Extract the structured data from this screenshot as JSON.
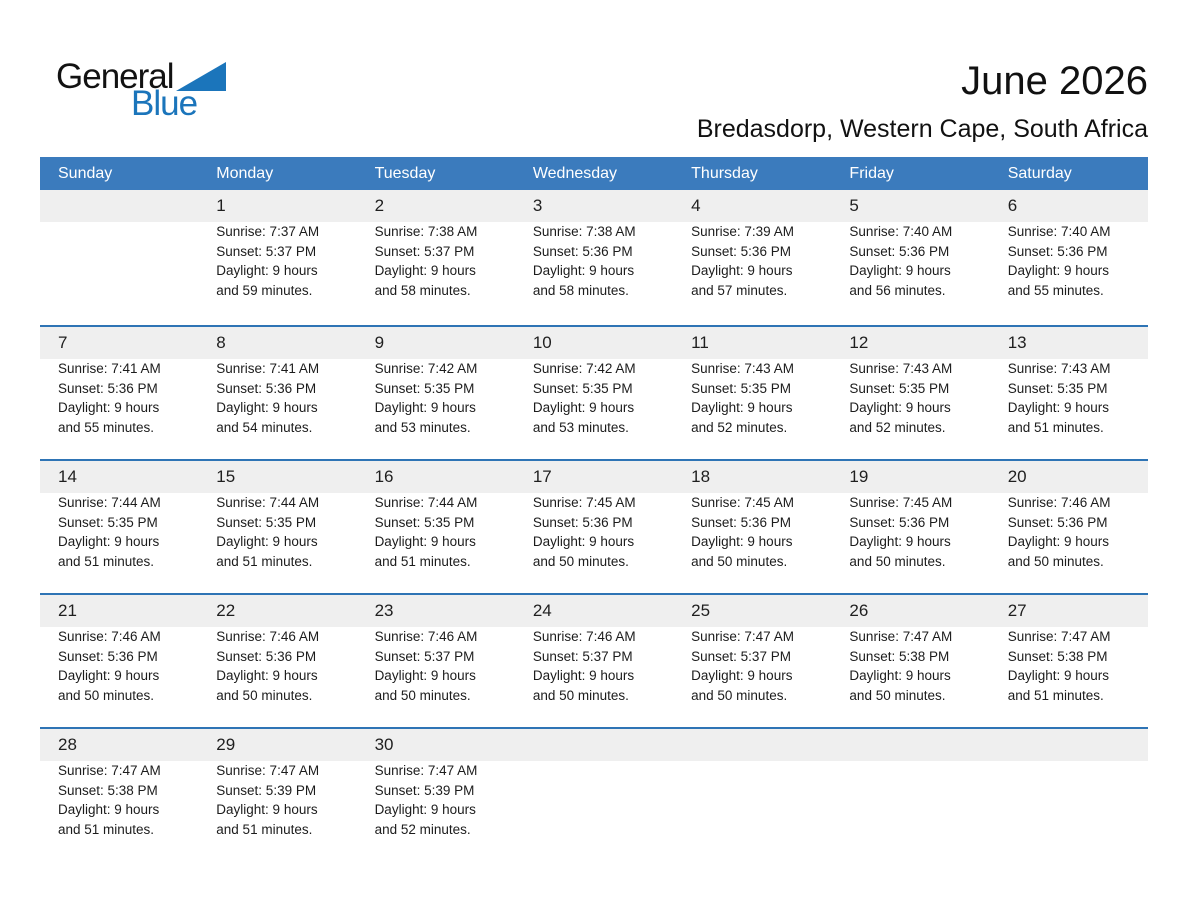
{
  "logo": {
    "word1": "General",
    "word2": "Blue"
  },
  "header": {
    "title": "June 2026",
    "subtitle": "Bredasdorp, Western Cape, South Africa"
  },
  "colors": {
    "header_bar_blue": "#3b7bbd",
    "week_divider_blue": "#2e74b5",
    "logo_blue": "#1b75bb",
    "day_number_band_gray": "#efefef"
  },
  "weekdays": [
    "Sunday",
    "Monday",
    "Tuesday",
    "Wednesday",
    "Thursday",
    "Friday",
    "Saturday"
  ],
  "weeks": [
    [
      {
        "day": "",
        "lines": []
      },
      {
        "day": "1",
        "lines": [
          "Sunrise: 7:37 AM",
          "Sunset: 5:37 PM",
          "Daylight: 9 hours",
          "and 59 minutes."
        ]
      },
      {
        "day": "2",
        "lines": [
          "Sunrise: 7:38 AM",
          "Sunset: 5:37 PM",
          "Daylight: 9 hours",
          "and 58 minutes."
        ]
      },
      {
        "day": "3",
        "lines": [
          "Sunrise: 7:38 AM",
          "Sunset: 5:36 PM",
          "Daylight: 9 hours",
          "and 58 minutes."
        ]
      },
      {
        "day": "4",
        "lines": [
          "Sunrise: 7:39 AM",
          "Sunset: 5:36 PM",
          "Daylight: 9 hours",
          "and 57 minutes."
        ]
      },
      {
        "day": "5",
        "lines": [
          "Sunrise: 7:40 AM",
          "Sunset: 5:36 PM",
          "Daylight: 9 hours",
          "and 56 minutes."
        ]
      },
      {
        "day": "6",
        "lines": [
          "Sunrise: 7:40 AM",
          "Sunset: 5:36 PM",
          "Daylight: 9 hours",
          "and 55 minutes."
        ]
      }
    ],
    [
      {
        "day": "7",
        "lines": [
          "Sunrise: 7:41 AM",
          "Sunset: 5:36 PM",
          "Daylight: 9 hours",
          "and 55 minutes."
        ]
      },
      {
        "day": "8",
        "lines": [
          "Sunrise: 7:41 AM",
          "Sunset: 5:36 PM",
          "Daylight: 9 hours",
          "and 54 minutes."
        ]
      },
      {
        "day": "9",
        "lines": [
          "Sunrise: 7:42 AM",
          "Sunset: 5:35 PM",
          "Daylight: 9 hours",
          "and 53 minutes."
        ]
      },
      {
        "day": "10",
        "lines": [
          "Sunrise: 7:42 AM",
          "Sunset: 5:35 PM",
          "Daylight: 9 hours",
          "and 53 minutes."
        ]
      },
      {
        "day": "11",
        "lines": [
          "Sunrise: 7:43 AM",
          "Sunset: 5:35 PM",
          "Daylight: 9 hours",
          "and 52 minutes."
        ]
      },
      {
        "day": "12",
        "lines": [
          "Sunrise: 7:43 AM",
          "Sunset: 5:35 PM",
          "Daylight: 9 hours",
          "and 52 minutes."
        ]
      },
      {
        "day": "13",
        "lines": [
          "Sunrise: 7:43 AM",
          "Sunset: 5:35 PM",
          "Daylight: 9 hours",
          "and 51 minutes."
        ]
      }
    ],
    [
      {
        "day": "14",
        "lines": [
          "Sunrise: 7:44 AM",
          "Sunset: 5:35 PM",
          "Daylight: 9 hours",
          "and 51 minutes."
        ]
      },
      {
        "day": "15",
        "lines": [
          "Sunrise: 7:44 AM",
          "Sunset: 5:35 PM",
          "Daylight: 9 hours",
          "and 51 minutes."
        ]
      },
      {
        "day": "16",
        "lines": [
          "Sunrise: 7:44 AM",
          "Sunset: 5:35 PM",
          "Daylight: 9 hours",
          "and 51 minutes."
        ]
      },
      {
        "day": "17",
        "lines": [
          "Sunrise: 7:45 AM",
          "Sunset: 5:36 PM",
          "Daylight: 9 hours",
          "and 50 minutes."
        ]
      },
      {
        "day": "18",
        "lines": [
          "Sunrise: 7:45 AM",
          "Sunset: 5:36 PM",
          "Daylight: 9 hours",
          "and 50 minutes."
        ]
      },
      {
        "day": "19",
        "lines": [
          "Sunrise: 7:45 AM",
          "Sunset: 5:36 PM",
          "Daylight: 9 hours",
          "and 50 minutes."
        ]
      },
      {
        "day": "20",
        "lines": [
          "Sunrise: 7:46 AM",
          "Sunset: 5:36 PM",
          "Daylight: 9 hours",
          "and 50 minutes."
        ]
      }
    ],
    [
      {
        "day": "21",
        "lines": [
          "Sunrise: 7:46 AM",
          "Sunset: 5:36 PM",
          "Daylight: 9 hours",
          "and 50 minutes."
        ]
      },
      {
        "day": "22",
        "lines": [
          "Sunrise: 7:46 AM",
          "Sunset: 5:36 PM",
          "Daylight: 9 hours",
          "and 50 minutes."
        ]
      },
      {
        "day": "23",
        "lines": [
          "Sunrise: 7:46 AM",
          "Sunset: 5:37 PM",
          "Daylight: 9 hours",
          "and 50 minutes."
        ]
      },
      {
        "day": "24",
        "lines": [
          "Sunrise: 7:46 AM",
          "Sunset: 5:37 PM",
          "Daylight: 9 hours",
          "and 50 minutes."
        ]
      },
      {
        "day": "25",
        "lines": [
          "Sunrise: 7:47 AM",
          "Sunset: 5:37 PM",
          "Daylight: 9 hours",
          "and 50 minutes."
        ]
      },
      {
        "day": "26",
        "lines": [
          "Sunrise: 7:47 AM",
          "Sunset: 5:38 PM",
          "Daylight: 9 hours",
          "and 50 minutes."
        ]
      },
      {
        "day": "27",
        "lines": [
          "Sunrise: 7:47 AM",
          "Sunset: 5:38 PM",
          "Daylight: 9 hours",
          "and 51 minutes."
        ]
      }
    ],
    [
      {
        "day": "28",
        "lines": [
          "Sunrise: 7:47 AM",
          "Sunset: 5:38 PM",
          "Daylight: 9 hours",
          "and 51 minutes."
        ]
      },
      {
        "day": "29",
        "lines": [
          "Sunrise: 7:47 AM",
          "Sunset: 5:39 PM",
          "Daylight: 9 hours",
          "and 51 minutes."
        ]
      },
      {
        "day": "30",
        "lines": [
          "Sunrise: 7:47 AM",
          "Sunset: 5:39 PM",
          "Daylight: 9 hours",
          "and 52 minutes."
        ]
      },
      {
        "day": "",
        "lines": []
      },
      {
        "day": "",
        "lines": []
      },
      {
        "day": "",
        "lines": []
      },
      {
        "day": "",
        "lines": []
      }
    ]
  ]
}
